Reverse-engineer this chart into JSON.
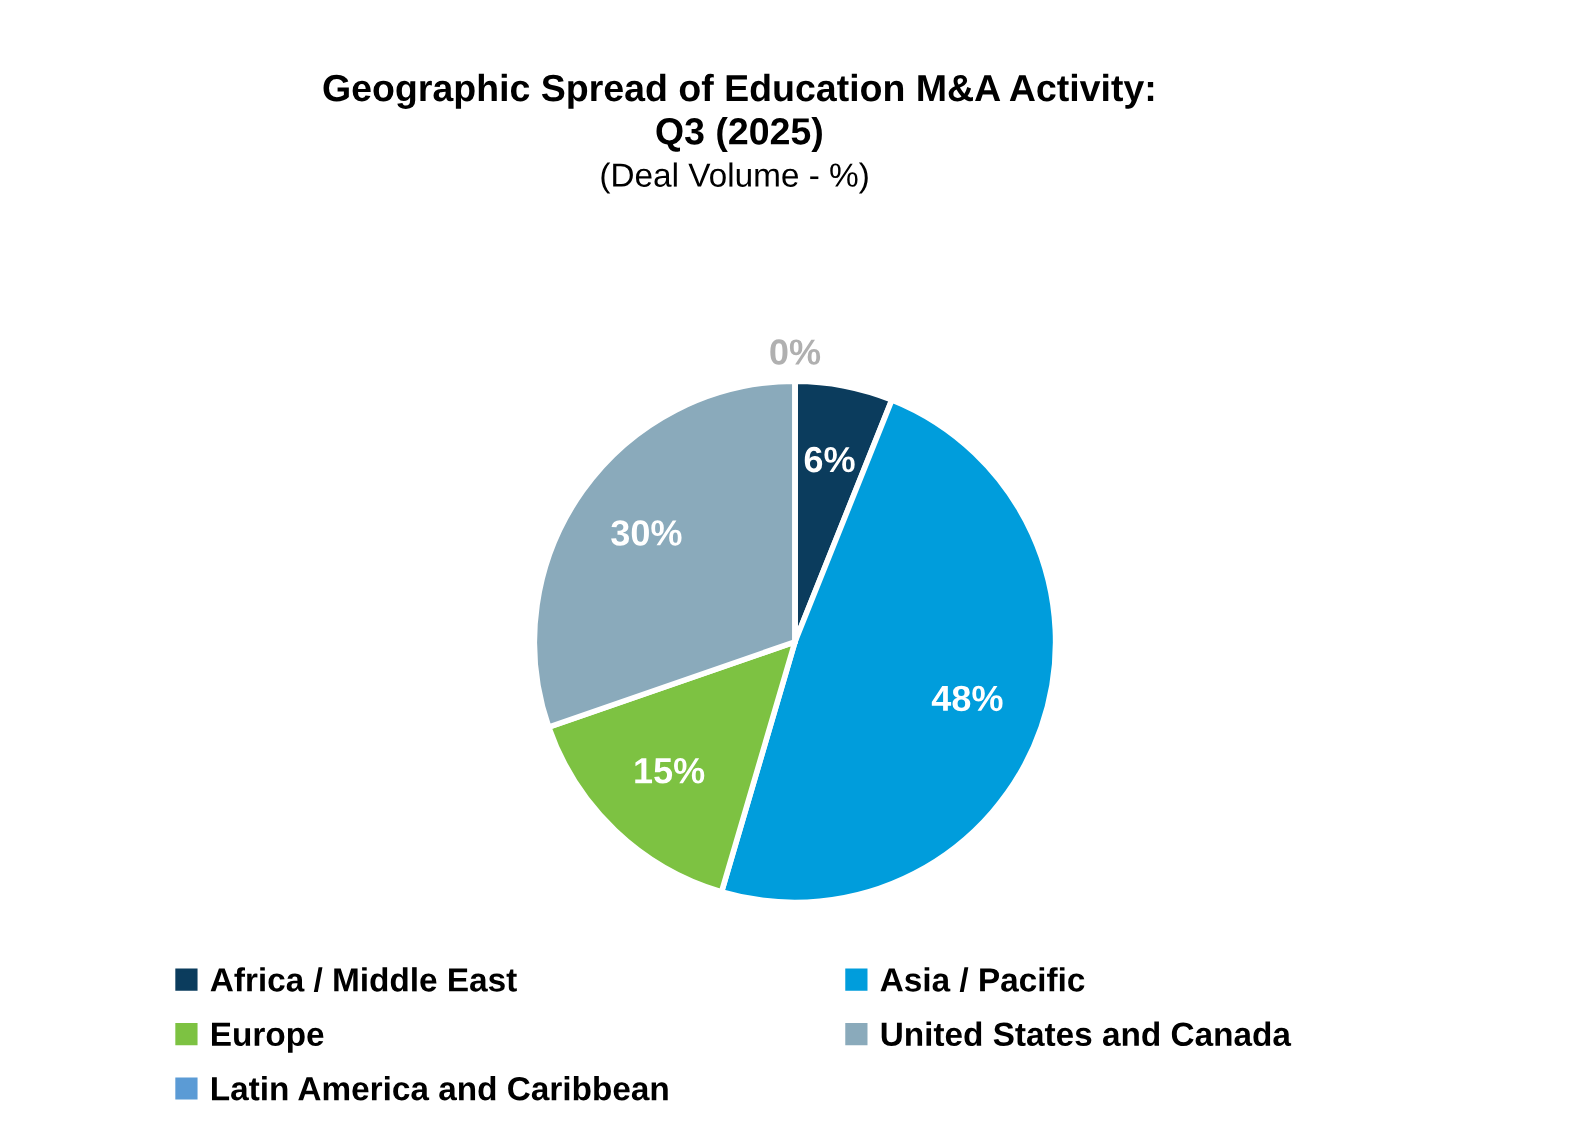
{
  "chart_data": {
    "type": "pie",
    "title": "Geographic Spread of Education M&A Activity:\nQ3 (2025)",
    "subtitle": "(Deal Volume - %)",
    "categories": [
      "Africa / Middle East",
      "Asia / Pacific",
      "Europe",
      "United States and Canada",
      "Latin America and Caribbean"
    ],
    "values": [
      6,
      48,
      15,
      30,
      0
    ],
    "colors": [
      "#0b3c5d",
      "#009ddc",
      "#7dc242",
      "#8aaabb",
      "#5b9bd5"
    ],
    "value_labels": [
      "6%",
      "48%",
      "15%",
      "30%",
      "0%"
    ],
    "legend": "bottom"
  }
}
